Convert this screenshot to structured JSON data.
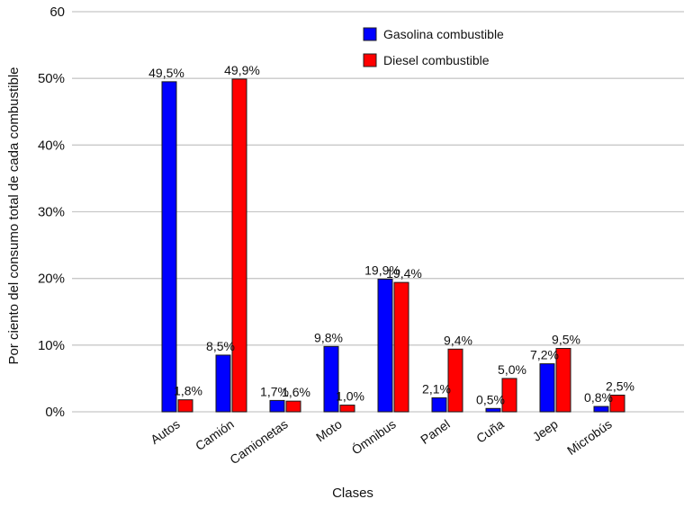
{
  "chart_data": {
    "type": "bar",
    "xlabel": "Clases",
    "ylabel": "Por ciento del consumo total de cada combustible",
    "ylim": [
      0,
      60
    ],
    "yticks": [
      {
        "value": 0,
        "label": "0%"
      },
      {
        "value": 10,
        "label": "10%"
      },
      {
        "value": 20,
        "label": "20%"
      },
      {
        "value": 30,
        "label": "30%"
      },
      {
        "value": 40,
        "label": "40%"
      },
      {
        "value": 50,
        "label": "50%"
      },
      {
        "value": 60,
        "label": "60"
      }
    ],
    "grid": true,
    "legend_position": "top-right",
    "categories": [
      "Autos",
      "Camión",
      "Camionetas",
      "Moto",
      "Ómnibus",
      "Panel",
      "Cuña",
      "Jeep",
      "Microbús"
    ],
    "series": [
      {
        "name": "Gasolina combustible",
        "color": "#0000ff",
        "values": [
          49.5,
          8.5,
          1.7,
          9.8,
          19.9,
          2.1,
          0.5,
          7.2,
          0.8
        ],
        "labels": [
          "49,5%",
          "8,5%",
          "1,7%",
          "9,8%",
          "19,9%",
          "2,1%",
          "0,5%",
          "7,2%",
          "0,8%"
        ]
      },
      {
        "name": "Diesel combustible",
        "color": "#ff0000",
        "values": [
          1.8,
          49.9,
          1.6,
          1.0,
          19.4,
          9.4,
          5.0,
          9.5,
          2.5
        ],
        "labels": [
          "1,8%",
          "49,9%",
          "1,6%",
          "1,0%",
          "19,4%",
          "9,4%",
          "5,0%",
          "9,5%",
          "2,5%"
        ]
      }
    ]
  }
}
